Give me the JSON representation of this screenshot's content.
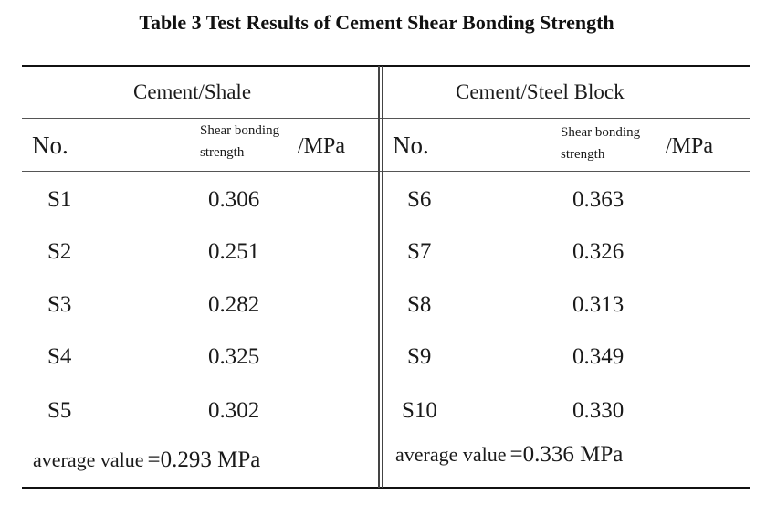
{
  "title": "Table 3 Test Results of Cement Shear Bonding Strength",
  "left": {
    "group": "Cement/Shale",
    "no_label": "No.",
    "strength_line1": "Shear bonding",
    "strength_line2": "strength",
    "unit": "/MPa",
    "rows": [
      {
        "id": "S1",
        "value": "0.306"
      },
      {
        "id": "S2",
        "value": "0.251"
      },
      {
        "id": "S3",
        "value": "0.282"
      },
      {
        "id": "S4",
        "value": "0.325"
      },
      {
        "id": "S5",
        "value": "0.302"
      }
    ],
    "average_label": "average value",
    "average_value": "=0.293 MPa"
  },
  "right": {
    "group": "Cement/Steel Block",
    "no_label": "No.",
    "strength_line1": "Shear bonding",
    "strength_line2": "strength",
    "unit": "/MPa",
    "rows": [
      {
        "id": "S6",
        "value": "0.363"
      },
      {
        "id": "S7",
        "value": "0.326"
      },
      {
        "id": "S8",
        "value": "0.313"
      },
      {
        "id": "S9",
        "value": "0.349"
      },
      {
        "id": "S10",
        "value": "0.330"
      }
    ],
    "average_label": "average value",
    "average_value": "=0.336 MPa"
  }
}
